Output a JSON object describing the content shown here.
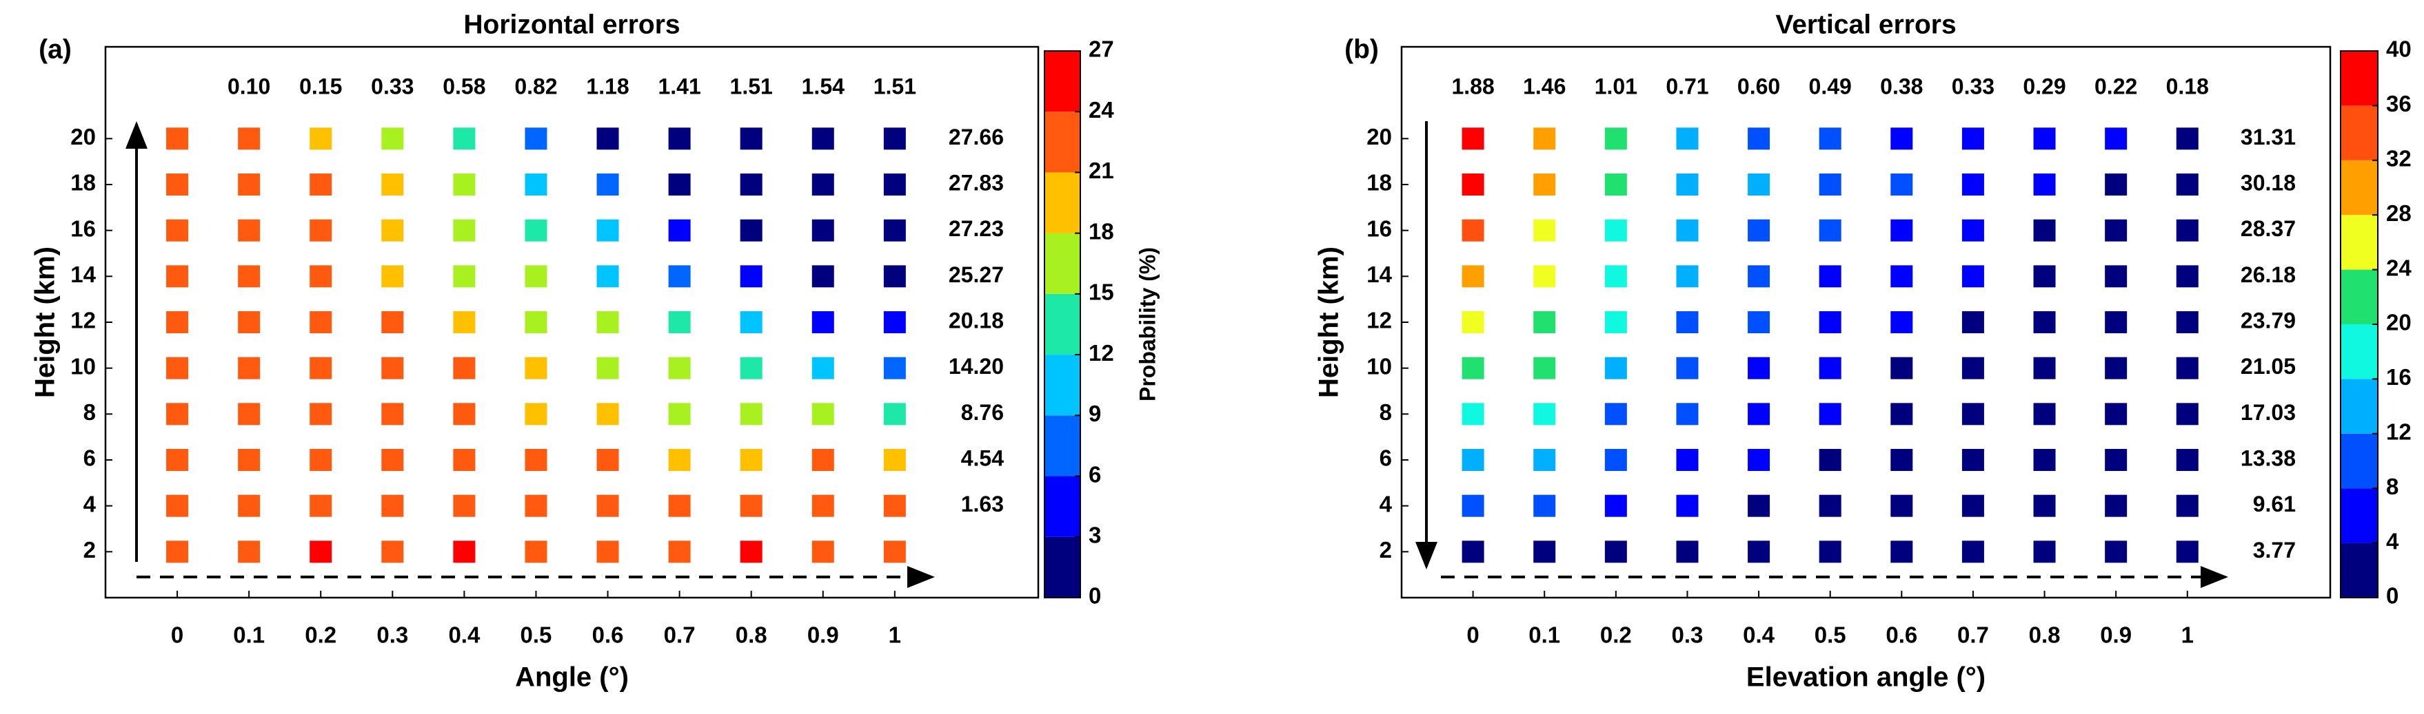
{
  "chart_data": [
    {
      "type": "heatmap",
      "panel": "(a)",
      "title": "Horizontal errors",
      "xlabel": "Angle (°)",
      "ylabel": "Height (km)",
      "colorbar_label": "Probability (%)",
      "x": [
        0,
        0.1,
        0.2,
        0.3,
        0.4,
        0.5,
        0.6,
        0.7,
        0.8,
        0.9,
        1
      ],
      "y": [
        2,
        4,
        6,
        8,
        10,
        12,
        14,
        16,
        18,
        20
      ],
      "z": [
        [
          22.5,
          22.5,
          25.5,
          22.5,
          25.5,
          22.5,
          22.5,
          22.5,
          25.5,
          22.5,
          22.5
        ],
        [
          22.5,
          22.5,
          22.5,
          22.5,
          22.5,
          22.5,
          22.5,
          22.5,
          22.5,
          22.5,
          22.5
        ],
        [
          22.5,
          22.5,
          22.5,
          22.5,
          22.5,
          22.5,
          22.5,
          19.5,
          19.5,
          22.5,
          19.5
        ],
        [
          22.5,
          22.5,
          22.5,
          22.5,
          22.5,
          19.5,
          19.5,
          16.5,
          16.5,
          16.5,
          13.5
        ],
        [
          22.5,
          22.5,
          22.5,
          22.5,
          22.5,
          19.5,
          16.5,
          16.5,
          13.5,
          10.5,
          7.5
        ],
        [
          22.5,
          22.5,
          22.5,
          22.5,
          19.5,
          16.5,
          16.5,
          13.5,
          10.5,
          4.5,
          4.5
        ],
        [
          22.5,
          22.5,
          22.5,
          19.5,
          16.5,
          16.5,
          10.5,
          7.5,
          4.5,
          1.5,
          1.5
        ],
        [
          22.5,
          22.5,
          22.5,
          19.5,
          16.5,
          13.5,
          10.5,
          4.5,
          1.5,
          1.5,
          1.5
        ],
        [
          22.5,
          22.5,
          22.5,
          19.5,
          16.5,
          10.5,
          7.5,
          1.5,
          1.5,
          1.5,
          1.5
        ],
        [
          22.5,
          22.5,
          19.5,
          16.5,
          13.5,
          7.5,
          1.5,
          1.5,
          1.5,
          1.5,
          1.5
        ]
      ],
      "xlim": [
        -0.1,
        1.2
      ],
      "ylim": [
        0,
        24
      ],
      "xticks": [
        0,
        0.1,
        0.2,
        0.3,
        0.4,
        0.5,
        0.6,
        0.7,
        0.8,
        0.9,
        1
      ],
      "yticks": [
        2,
        4,
        6,
        8,
        10,
        12,
        14,
        16,
        18,
        20
      ],
      "clim": [
        0,
        27
      ],
      "cticks": [
        0,
        3,
        6,
        9,
        12,
        15,
        18,
        21,
        24,
        27
      ],
      "colormap": [
        "#00007f",
        "#0000ff",
        "#0066ff",
        "#00c4ff",
        "#1ee8a8",
        "#a8f020",
        "#ffc000",
        "#ff5a10",
        "#ff0000"
      ],
      "column_errors": {
        "values": [
          0.1,
          0.15,
          0.33,
          0.58,
          0.82,
          1.18,
          1.41,
          1.51,
          1.54,
          1.51
        ],
        "value_labels": [
          "0.10",
          "0.15",
          "0.33",
          "0.58",
          "0.82",
          "1.18",
          "1.41",
          "1.51",
          "1.54",
          "1.51"
        ],
        "colors": [
          "#ff0000",
          "#0000ff",
          "#0000ff",
          "#ff0000",
          "#ff0000",
          "#ff0000",
          "#ff0000",
          "#ff0000",
          "#ff0000",
          "#ff0000"
        ]
      },
      "row_errors": {
        "values": [
          null,
          1.63,
          4.54,
          8.76,
          14.2,
          20.18,
          25.27,
          27.23,
          27.83,
          27.66
        ],
        "value_labels": [
          null,
          "1.63",
          "4.54",
          "8.76",
          "14.20",
          "20.18",
          "25.27",
          "27.23",
          "27.83",
          "27.66"
        ],
        "colors": [
          null,
          "#0000ff",
          "#0000ff",
          "#0000ff",
          "#ff0000",
          "#ff0000",
          "#ff0000",
          "#ff0000",
          "#ff0000",
          "#ff0000"
        ]
      }
    },
    {
      "type": "heatmap",
      "panel": "(b)",
      "title": "Vertical errors",
      "xlabel": "Elevation angle (°)",
      "ylabel": "Height (km)",
      "x": [
        0,
        0.1,
        0.2,
        0.3,
        0.4,
        0.5,
        0.6,
        0.7,
        0.8,
        0.9,
        1
      ],
      "y": [
        2,
        4,
        6,
        8,
        10,
        12,
        14,
        16,
        18,
        20
      ],
      "z": [
        [
          2,
          2,
          2,
          2,
          2,
          2,
          2,
          2,
          2,
          2,
          2
        ],
        [
          10,
          10,
          6,
          6,
          2,
          2,
          2,
          2,
          2,
          2,
          2
        ],
        [
          14,
          14,
          10,
          6,
          6,
          2,
          2,
          2,
          2,
          2,
          2
        ],
        [
          18,
          18,
          10,
          10,
          6,
          6,
          2,
          2,
          2,
          2,
          2
        ],
        [
          22,
          22,
          14,
          10,
          6,
          6,
          2,
          2,
          2,
          2,
          2
        ],
        [
          26,
          22,
          18,
          10,
          10,
          6,
          6,
          2,
          2,
          2,
          2
        ],
        [
          30,
          26,
          18,
          14,
          10,
          6,
          6,
          6,
          2,
          2,
          2
        ],
        [
          34,
          26,
          18,
          14,
          10,
          10,
          6,
          6,
          2,
          2,
          2
        ],
        [
          38,
          30,
          22,
          14,
          14,
          10,
          10,
          6,
          6,
          2,
          2
        ],
        [
          38,
          30,
          22,
          14,
          10,
          10,
          6,
          6,
          6,
          6,
          2
        ]
      ],
      "xlim": [
        -0.1,
        1.2
      ],
      "ylim": [
        0,
        24
      ],
      "xticks": [
        0,
        0.1,
        0.2,
        0.3,
        0.4,
        0.5,
        0.6,
        0.7,
        0.8,
        0.9,
        1
      ],
      "yticks": [
        2,
        4,
        6,
        8,
        10,
        12,
        14,
        16,
        18,
        20
      ],
      "clim": [
        0,
        40
      ],
      "cticks": [
        0,
        4,
        8,
        12,
        16,
        20,
        24,
        28,
        32,
        36,
        40
      ],
      "colormap": [
        "#00007f",
        "#0000ff",
        "#0050ff",
        "#00b0ff",
        "#10f8e0",
        "#20e070",
        "#f0ff20",
        "#ffa000",
        "#ff5010",
        "#ff0000"
      ],
      "column_errors": {
        "values": [
          1.88,
          1.46,
          1.01,
          0.71,
          0.6,
          0.49,
          0.38,
          0.33,
          0.29,
          0.22,
          0.18
        ],
        "value_labels": [
          "1.88",
          "1.46",
          "1.01",
          "0.71",
          "0.60",
          "0.49",
          "0.38",
          "0.33",
          "0.29",
          "0.22",
          "0.18"
        ],
        "colors": [
          "#ff0000",
          "#ff0000",
          "#ff0000",
          "#ff0000",
          "#ff0000",
          "#ff0000",
          "#ff0000",
          "#ff0000",
          "#ff0000",
          "#0000ff",
          "#ff0000"
        ]
      },
      "row_errors": {
        "values": [
          3.77,
          9.61,
          13.38,
          17.03,
          21.05,
          23.79,
          26.18,
          28.37,
          30.18,
          31.31
        ],
        "value_labels": [
          "3.77",
          "9.61",
          "13.38",
          "17.03",
          "21.05",
          "23.79",
          "26.18",
          "28.37",
          "30.18",
          "31.31"
        ],
        "colors": [
          "#000000",
          "#0000ff",
          "#0000ff",
          "#0000ff",
          "#0000ff",
          "#0000ff",
          "#0000ff",
          "#0000ff",
          "#0000ff",
          "#0000ff"
        ]
      }
    }
  ]
}
